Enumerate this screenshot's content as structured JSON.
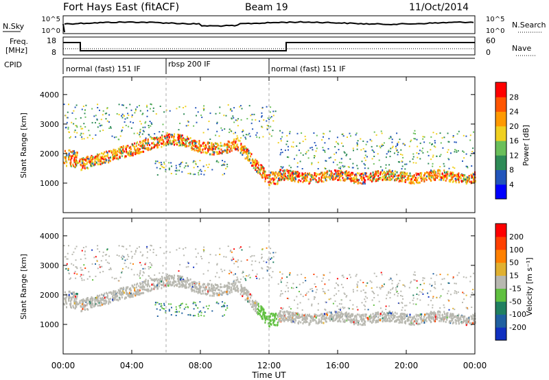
{
  "header": {
    "title": "Fort Hays East (fitACF)",
    "beam": "Beam 19",
    "date": "11/Oct/2014"
  },
  "panels": {
    "nsky": {
      "left_label": "N.Sky",
      "right_label": "N.Search",
      "left_ticks": [
        "10^5",
        "10^0"
      ],
      "right_ticks": [
        "10^5",
        "10^0"
      ]
    },
    "freq": {
      "left_label_1": "Freq.",
      "left_label_2": "[MHz]",
      "right_label": "Nave",
      "left_ticks": [
        "18",
        "8"
      ],
      "right_ticks": [
        "60",
        "0"
      ]
    },
    "cpid": {
      "label": "CPID",
      "segments": [
        {
          "label": "normal (fast) 151 IF"
        },
        {
          "label": "rbsp 200 IF"
        },
        {
          "label": "normal (fast) 151 IF"
        }
      ]
    }
  },
  "chart_data": [
    {
      "type": "heatmap",
      "name": "power",
      "ylabel": "Slant Range [km]",
      "xlabel": "Time UT",
      "ylim": [
        0,
        4600
      ],
      "yticks": [
        "1000",
        "2000",
        "3000",
        "4000"
      ],
      "xticks": [
        "00:00",
        "04:00",
        "08:00",
        "12:00",
        "16:00",
        "20:00",
        "00:00"
      ],
      "colorbar": {
        "label": "Power [dB]",
        "ticks": [
          "4",
          "8",
          "12",
          "16",
          "20",
          "24",
          "28"
        ],
        "colors": [
          "#0000ff",
          "#2255bb",
          "#2e8b57",
          "#6abf5a",
          "#f0d020",
          "#ff9900",
          "#ff5500",
          "#ff0000"
        ]
      }
    },
    {
      "type": "heatmap",
      "name": "velocity",
      "ylabel": "Slant Range [km]",
      "xlabel": "Time UT",
      "ylim": [
        0,
        4600
      ],
      "yticks": [
        "1000",
        "2000",
        "3000",
        "4000"
      ],
      "xticks": [
        "00:00",
        "04:00",
        "08:00",
        "12:00",
        "16:00",
        "20:00",
        "00:00"
      ],
      "colorbar": {
        "label": "Velocity [m s⁻¹]",
        "ticks": [
          "200",
          "100",
          "50",
          "15",
          "-15",
          "-50",
          "-100",
          "-200"
        ],
        "colors": [
          "#1030c0",
          "#2060a0",
          "#208060",
          "#60c040",
          "#b8b8b0",
          "#e0b030",
          "#ff8000",
          "#ff4000",
          "#ff0000"
        ]
      }
    }
  ],
  "axis": {
    "xlabel": "Time UT"
  }
}
